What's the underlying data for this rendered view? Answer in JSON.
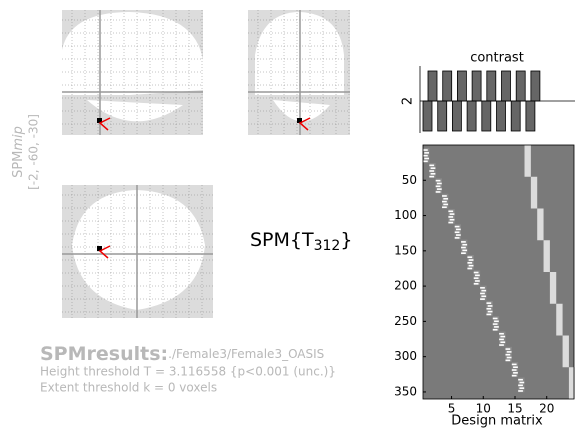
{
  "mip": {
    "label_main": "SPM",
    "label_italic": "mip",
    "coords": "[-2, -60, -30]"
  },
  "stat": {
    "prefix": "SPM{T",
    "subscript": "312",
    "suffix": "}"
  },
  "results": {
    "title": "SPMresults:",
    "path": "./Female3/Female3_OASIS",
    "height": "Height threshold T = 3.116558  {p<0.001 (unc.)}",
    "extent": "Extent threshold k = 0 voxels"
  },
  "contrast": {
    "title": "contrast",
    "label": "2"
  },
  "design_matrix": {
    "xlabel": "Design matrix",
    "xlim": [
      0.5,
      24.3
    ],
    "ylim": [
      0,
      360
    ],
    "xticks": [
      5,
      10,
      15,
      20
    ],
    "yticks": [
      50,
      100,
      150,
      200,
      250,
      300,
      350
    ]
  }
}
